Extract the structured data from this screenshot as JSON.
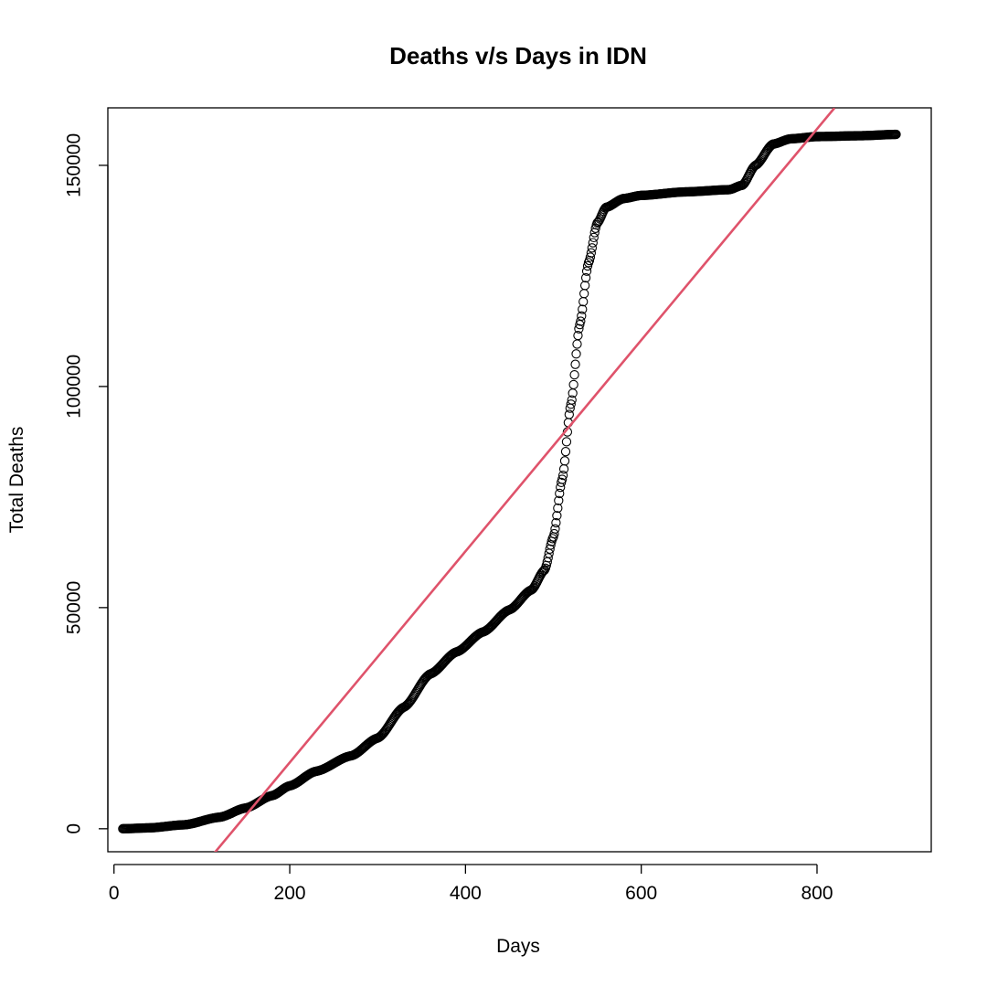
{
  "chart_data": {
    "type": "scatter",
    "title": "Deaths v/s Days in IDN",
    "xlabel": "Days",
    "ylabel": "Total Deaths",
    "xlim": [
      -7,
      930
    ],
    "ylim": [
      -5200,
      163000
    ],
    "x_ticks": [
      0,
      200,
      400,
      600,
      800
    ],
    "y_ticks": [
      0,
      50000,
      100000,
      150000
    ],
    "x_tick_labels": [
      "0",
      "200",
      "400",
      "600",
      "800"
    ],
    "y_tick_labels": [
      "0",
      "50000",
      "100000",
      "150000"
    ],
    "grid": false,
    "legend": "none",
    "series": [
      {
        "marker": "open-circle",
        "color": "#000000",
        "x_range": [
          10,
          890
        ],
        "points": [
          [
            10,
            0
          ],
          [
            40,
            200
          ],
          [
            80,
            900
          ],
          [
            120,
            2600
          ],
          [
            150,
            4700
          ],
          [
            180,
            7500
          ],
          [
            200,
            9700
          ],
          [
            230,
            13000
          ],
          [
            270,
            16500
          ],
          [
            300,
            20500
          ],
          [
            330,
            27500
          ],
          [
            360,
            35000
          ],
          [
            390,
            40000
          ],
          [
            420,
            44500
          ],
          [
            450,
            49500
          ],
          [
            475,
            54000
          ],
          [
            490,
            58500
          ],
          [
            500,
            66000
          ],
          [
            510,
            79000
          ],
          [
            520,
            96000
          ],
          [
            530,
            114000
          ],
          [
            540,
            128000
          ],
          [
            550,
            137000
          ],
          [
            560,
            140500
          ],
          [
            580,
            142500
          ],
          [
            600,
            143200
          ],
          [
            650,
            144000
          ],
          [
            700,
            144500
          ],
          [
            715,
            145500
          ],
          [
            730,
            150000
          ],
          [
            750,
            154800
          ],
          [
            770,
            156000
          ],
          [
            800,
            156500
          ],
          [
            850,
            156700
          ],
          [
            890,
            157000
          ]
        ]
      },
      {
        "type": "line",
        "color": "#DF536B",
        "points": [
          [
            110,
            -6500
          ],
          [
            820,
            163000
          ]
        ]
      }
    ]
  }
}
